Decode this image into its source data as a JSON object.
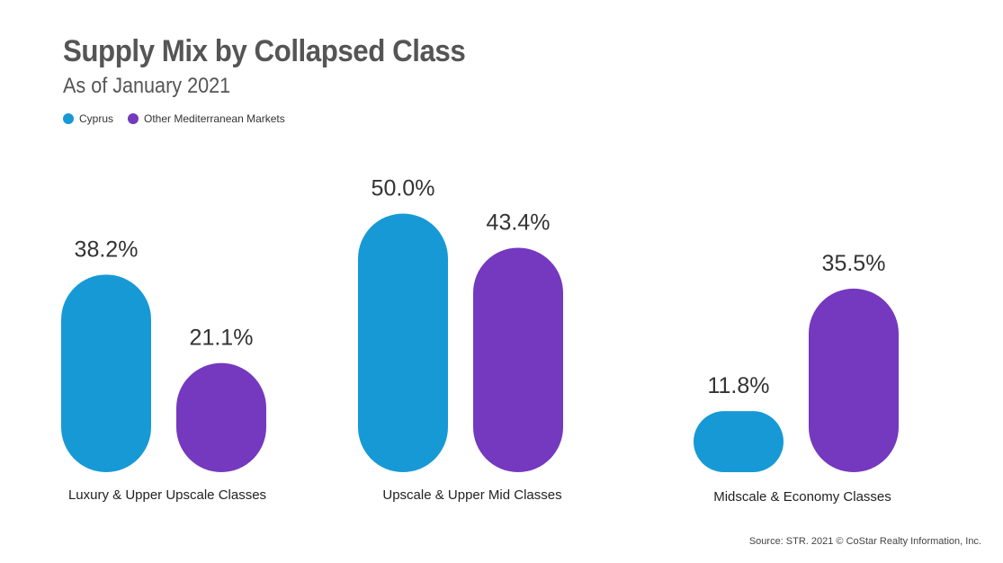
{
  "chart_data": {
    "type": "bar",
    "title": "Supply Mix by Collapsed Class",
    "subtitle": "As of January 2021",
    "categories": [
      "Luxury & Upper Upscale Classes",
      "Upscale & Upper Mid Classes",
      "Midscale & Economy Classes"
    ],
    "series": [
      {
        "name": "Cyprus",
        "color": "#1799d6",
        "values": [
          38.2,
          50.0,
          11.8
        ],
        "labels": [
          "38.2%",
          "50.0%",
          "11.8%"
        ]
      },
      {
        "name": "Other Mediterranean Markets",
        "color": "#7439be",
        "values": [
          21.1,
          43.4,
          35.5
        ],
        "labels": [
          "21.1%",
          "43.4%",
          "35.5%"
        ]
      }
    ],
    "value_unit": "%",
    "grid": false,
    "legend_position": "top-left",
    "source": "Source: STR. 2021 © CoStar Realty Information, Inc."
  }
}
